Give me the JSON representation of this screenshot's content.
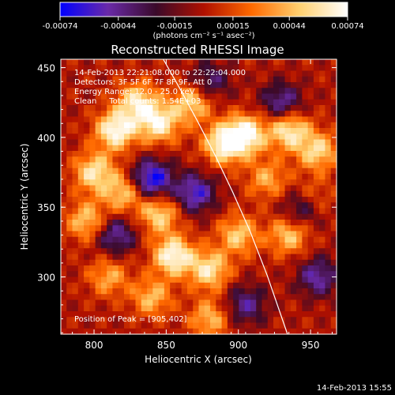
{
  "chart_data": {
    "type": "heatmap",
    "title": "Reconstructed RHESSI Image",
    "xlabel": "Heliocentric X (arcsec)",
    "ylabel": "Heliocentric Y (arcsec)",
    "xlim": [
      777,
      968
    ],
    "ylim": [
      259,
      456
    ],
    "x_ticks": [
      800,
      850,
      900,
      950
    ],
    "y_ticks": [
      300,
      350,
      400,
      450
    ],
    "x_tick_labels": [
      "800",
      "850",
      "900",
      "950"
    ],
    "y_tick_labels": [
      "300",
      "350",
      "400",
      "450"
    ],
    "colorbar": {
      "ticks": [
        -0.00074,
        -0.00044,
        -0.00015,
        0.00015,
        0.00044,
        0.00074
      ],
      "tick_labels": [
        "-0.00074",
        "-0.00044",
        "-0.00015",
        "0.00015",
        "0.00044",
        "0.00074"
      ],
      "unit_label": "(photons cm⁻² s⁻¹ asec⁻²)",
      "colors": [
        "#0000ff",
        "#6a2aa8",
        "#3a0a2a",
        "#b01000",
        "#ff6a00",
        "#ffd070",
        "#ffffff"
      ]
    },
    "annotations": {
      "time_range": "14-Feb-2013 22:21:08.000 to 22:22:04.000",
      "detectors": "Detectors: 3F 5F 6F 7F 8F 9F, Att 0",
      "energy": "Energy Range: 12.0 - 25.0 keV",
      "method": "Clean     Total counts: 1.54E+03",
      "peak": "Position of Peak = [905,402]"
    },
    "limb_curve": {
      "x": [
        848,
        860,
        872,
        884,
        896,
        908,
        920,
        934
      ],
      "y": [
        456,
        434,
        411,
        387,
        361,
        333,
        301,
        259
      ]
    },
    "hotspots": [
      {
        "x": 815,
        "y": 405,
        "value": 0.00074
      },
      {
        "x": 830,
        "y": 425,
        "value": 0.0006
      },
      {
        "x": 845,
        "y": 410,
        "value": 0.00065
      },
      {
        "x": 868,
        "y": 425,
        "value": 0.00055
      },
      {
        "x": 890,
        "y": 395,
        "value": 0.0007
      },
      {
        "x": 905,
        "y": 402,
        "value": 0.00074
      },
      {
        "x": 935,
        "y": 405,
        "value": 0.00065
      },
      {
        "x": 955,
        "y": 390,
        "value": 0.00055
      },
      {
        "x": 800,
        "y": 375,
        "value": 0.0006
      },
      {
        "x": 820,
        "y": 360,
        "value": 0.0005
      },
      {
        "x": 795,
        "y": 340,
        "value": 0.0005
      },
      {
        "x": 845,
        "y": 345,
        "value": 0.00055
      },
      {
        "x": 855,
        "y": 315,
        "value": 0.00074
      },
      {
        "x": 880,
        "y": 305,
        "value": 0.0006
      },
      {
        "x": 900,
        "y": 330,
        "value": 0.0005
      },
      {
        "x": 935,
        "y": 330,
        "value": 0.0005
      },
      {
        "x": 950,
        "y": 355,
        "value": 0.00045
      },
      {
        "x": 880,
        "y": 270,
        "value": 0.00045
      },
      {
        "x": 840,
        "y": 285,
        "value": 0.00045
      },
      {
        "x": 810,
        "y": 300,
        "value": 0.0004
      },
      {
        "x": 920,
        "y": 370,
        "value": 0.0004
      }
    ],
    "coldspots": [
      {
        "x": 840,
        "y": 370,
        "value": -0.00074
      },
      {
        "x": 870,
        "y": 360,
        "value": -0.0006
      },
      {
        "x": 945,
        "y": 350,
        "value": -0.0006
      },
      {
        "x": 930,
        "y": 425,
        "value": -0.0005
      },
      {
        "x": 880,
        "y": 440,
        "value": -0.0004
      },
      {
        "x": 815,
        "y": 330,
        "value": -0.0005
      },
      {
        "x": 955,
        "y": 300,
        "value": -0.0005
      },
      {
        "x": 905,
        "y": 280,
        "value": -0.00045
      }
    ]
  },
  "footer_date": "14-Feb-2013 15:55"
}
